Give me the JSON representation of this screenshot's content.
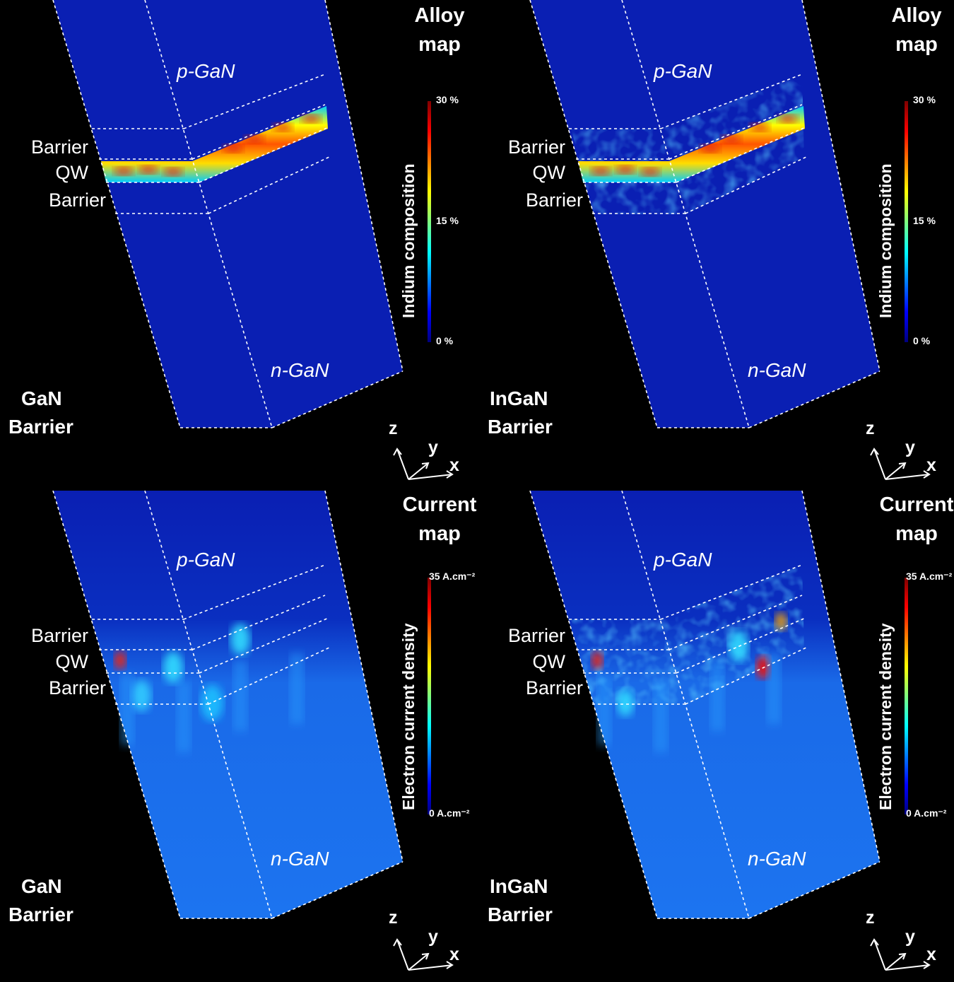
{
  "panels": [
    {
      "id": "alloy-gan",
      "map_title": [
        "Alloy",
        "map"
      ],
      "colorbar_title": "Indium composition",
      "ticks": {
        "max": "30 %",
        "mid": "15 %",
        "min": "0 %"
      },
      "barrier_type": [
        "GaN",
        "Barrier"
      ],
      "regions": {
        "top": "p-GaN",
        "bottom": "n-GaN"
      },
      "layers": [
        "Barrier",
        "QW",
        "Barrier"
      ],
      "axes": {
        "z": "z",
        "y": "y",
        "x": "x"
      }
    },
    {
      "id": "alloy-ingan",
      "map_title": [
        "Alloy",
        "map"
      ],
      "colorbar_title": "Indium composition",
      "ticks": {
        "max": "30 %",
        "mid": "15 %",
        "min": "0 %"
      },
      "barrier_type": [
        "InGaN",
        "Barrier"
      ],
      "regions": {
        "top": "p-GaN",
        "bottom": "n-GaN"
      },
      "layers": [
        "Barrier",
        "QW",
        "Barrier"
      ],
      "axes": {
        "z": "z",
        "y": "y",
        "x": "x"
      }
    },
    {
      "id": "current-gan",
      "map_title": [
        "Current",
        "map"
      ],
      "colorbar_title": "Electron current density",
      "ticks": {
        "max": "35 A.cm⁻²",
        "mid": "",
        "min": "0 A.cm⁻²"
      },
      "barrier_type": [
        "GaN",
        "Barrier"
      ],
      "regions": {
        "top": "p-GaN",
        "bottom": "n-GaN"
      },
      "layers": [
        "Barrier",
        "QW",
        "Barrier"
      ],
      "axes": {
        "z": "z",
        "y": "y",
        "x": "x"
      }
    },
    {
      "id": "current-ingan",
      "map_title": [
        "Current",
        "map"
      ],
      "colorbar_title": "Electron current density",
      "ticks": {
        "max": "35 A.cm⁻²",
        "mid": "",
        "min": "0 A.cm⁻²"
      },
      "barrier_type": [
        "InGaN",
        "Barrier"
      ],
      "regions": {
        "top": "p-GaN",
        "bottom": "n-GaN"
      },
      "layers": [
        "Barrier",
        "QW",
        "Barrier"
      ],
      "axes": {
        "z": "z",
        "y": "y",
        "x": "x"
      }
    }
  ],
  "colors": {
    "background": "#000000",
    "box_fill": "#0a1fb3",
    "current_fill": "#1c74f0",
    "colormap": [
      "#00007f",
      "#0000ff",
      "#007fff",
      "#00ffff",
      "#7fff7f",
      "#ffff00",
      "#ff7f00",
      "#ff0000",
      "#7f0000"
    ]
  }
}
